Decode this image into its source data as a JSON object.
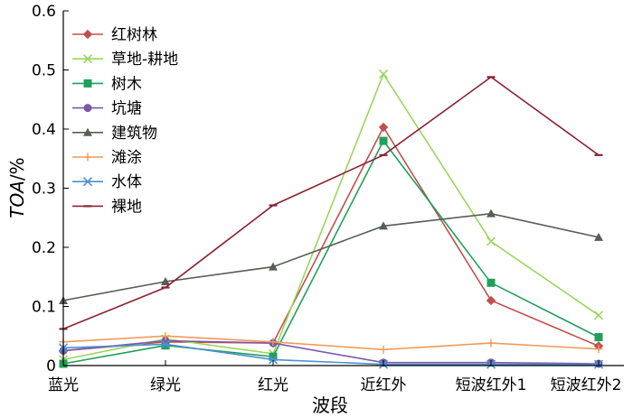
{
  "chart_data": {
    "type": "line",
    "categories": [
      "蓝光",
      "绿光",
      "红光",
      "近红外",
      "短波红外1",
      "短波红外2"
    ],
    "xlabel": "波段",
    "ylabel_italic": "TOA",
    "ylabel_unit": "/%",
    "ylim": [
      0,
      0.6
    ],
    "yticks": [
      "0",
      "0.1",
      "0.2",
      "0.3",
      "0.4",
      "0.5",
      "0.6"
    ],
    "grid": false,
    "legend_placement": "top-left",
    "series": [
      {
        "name": "红树林",
        "color": "#c0504d",
        "marker": "diamond",
        "values": [
          0.025,
          0.04,
          0.038,
          0.403,
          0.11,
          0.033
        ]
      },
      {
        "name": "草地-耕地",
        "color": "#9bd65a",
        "marker": "x",
        "values": [
          0.01,
          0.045,
          0.02,
          0.493,
          0.21,
          0.085
        ]
      },
      {
        "name": "树木",
        "color": "#1fa05a",
        "marker": "square",
        "values": [
          0.003,
          0.034,
          0.015,
          0.38,
          0.14,
          0.048
        ]
      },
      {
        "name": "坑塘",
        "color": "#7b59a8",
        "marker": "circle",
        "values": [
          0.025,
          0.042,
          0.038,
          0.005,
          0.005,
          0.003
        ]
      },
      {
        "name": "建筑物",
        "color": "#555f52",
        "marker": "triangle",
        "values": [
          0.11,
          0.142,
          0.167,
          0.236,
          0.257,
          0.217
        ]
      },
      {
        "name": "滩涂",
        "color": "#f09a5a",
        "marker": "plus",
        "values": [
          0.04,
          0.05,
          0.04,
          0.027,
          0.038,
          0.028
        ]
      },
      {
        "name": "水体",
        "color": "#4a90d0",
        "marker": "x",
        "values": [
          0.03,
          0.036,
          0.01,
          0.002,
          0.002,
          0.002
        ]
      },
      {
        "name": "裸地",
        "color": "#8b2233",
        "marker": "dash",
        "values": [
          0.062,
          0.132,
          0.271,
          0.356,
          0.488,
          0.356
        ]
      }
    ]
  }
}
